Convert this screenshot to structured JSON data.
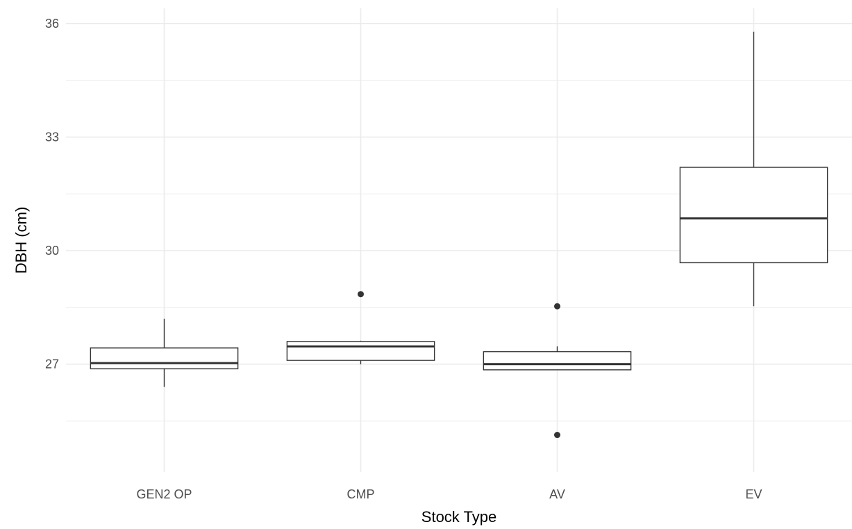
{
  "chart_data": {
    "type": "box",
    "title": "",
    "xlabel": "Stock Type",
    "ylabel": "DBH (cm)",
    "ylim": [
      24.15,
      36.4
    ],
    "y_ticks": [
      27,
      30,
      33,
      36
    ],
    "y_tick_labels": [
      "27",
      "30",
      "33",
      "36"
    ],
    "grid": true,
    "categories": [
      "GEN2 OP",
      "CMP",
      "AV",
      "EV"
    ],
    "boxes": [
      {
        "category": "GEN2 OP",
        "lower_whisker": 26.4,
        "q1": 26.88,
        "median": 27.03,
        "q3": 27.43,
        "upper_whisker": 28.2,
        "outliers": []
      },
      {
        "category": "CMP",
        "lower_whisker": 27.0,
        "q1": 27.1,
        "median": 27.47,
        "q3": 27.6,
        "upper_whisker": 27.62,
        "outliers": [
          28.85
        ]
      },
      {
        "category": "AV",
        "lower_whisker": 26.85,
        "q1": 26.85,
        "median": 27.0,
        "q3": 27.33,
        "upper_whisker": 27.47,
        "outliers": [
          28.53,
          25.13
        ]
      },
      {
        "category": "EV",
        "lower_whisker": 28.53,
        "q1": 29.68,
        "median": 30.85,
        "q3": 32.2,
        "upper_whisker": 35.78,
        "outliers": []
      }
    ],
    "colors": {
      "box_stroke": "#333333",
      "box_fill": "#ffffff",
      "grid": "#ebebeb",
      "point": "#333333"
    }
  }
}
